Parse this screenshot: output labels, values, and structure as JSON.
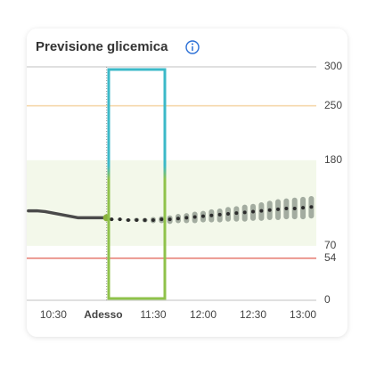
{
  "chart_data": {
    "type": "forecast",
    "title": "Previsione glicemica",
    "xlim": [
      "10:14",
      "13:08"
    ],
    "xticks": [
      "10:30",
      {
        "value": "11:00",
        "label": "Adesso"
      },
      "11:30",
      "12:00",
      "12:30",
      "13:00"
    ],
    "ylim": [
      0,
      300
    ],
    "yticks": [
      0,
      54,
      70,
      180,
      250,
      300
    ],
    "target_range": [
      70,
      180
    ],
    "target_color": "#f3f8ea",
    "thresholds": [
      {
        "value": 250,
        "color": "#f6d9ad"
      },
      {
        "value": 54,
        "color": "#e8837a"
      }
    ],
    "series": [
      {
        "style": "line",
        "color": "#4a4a4a",
        "x": [
          "10:15",
          "10:20",
          "10:25",
          "10:30",
          "10:35",
          "10:40",
          "10:45",
          "10:50",
          "10:55",
          "11:00"
        ],
        "values": [
          115,
          115,
          114,
          112,
          110,
          108,
          106,
          106,
          106,
          106
        ]
      },
      {
        "style": "dots",
        "color": "#2b2b2b",
        "range_color": "#a3aca0",
        "x": [
          "11:05",
          "11:10",
          "11:15",
          "11:20",
          "11:25",
          "11:30",
          "11:35",
          "11:40",
          "11:45",
          "11:50",
          "11:55",
          "12:00",
          "12:05",
          "12:10",
          "12:15",
          "12:20",
          "12:25",
          "12:30",
          "12:35",
          "12:40",
          "12:45",
          "12:50",
          "12:55",
          "13:00",
          "13:05"
        ],
        "values": [
          104,
          104,
          103,
          103,
          103,
          103,
          104,
          104,
          105,
          106,
          107,
          108,
          109,
          110,
          111,
          112,
          113,
          114,
          115,
          116,
          117,
          118,
          118,
          119,
          120
        ],
        "low": [
          103,
          103,
          101,
          101,
          100,
          99,
          99,
          98,
          99,
          99,
          99,
          100,
          100,
          100,
          101,
          101,
          101,
          102,
          102,
          103,
          103,
          104,
          104,
          104,
          105
        ],
        "high": [
          105,
          105,
          105,
          106,
          106,
          107,
          108,
          109,
          111,
          112,
          114,
          115,
          117,
          118,
          120,
          121,
          123,
          124,
          126,
          128,
          130,
          131,
          132,
          133,
          134
        ]
      }
    ],
    "now": {
      "x": "11:02",
      "value": 106,
      "color": "#8ab23c"
    }
  }
}
